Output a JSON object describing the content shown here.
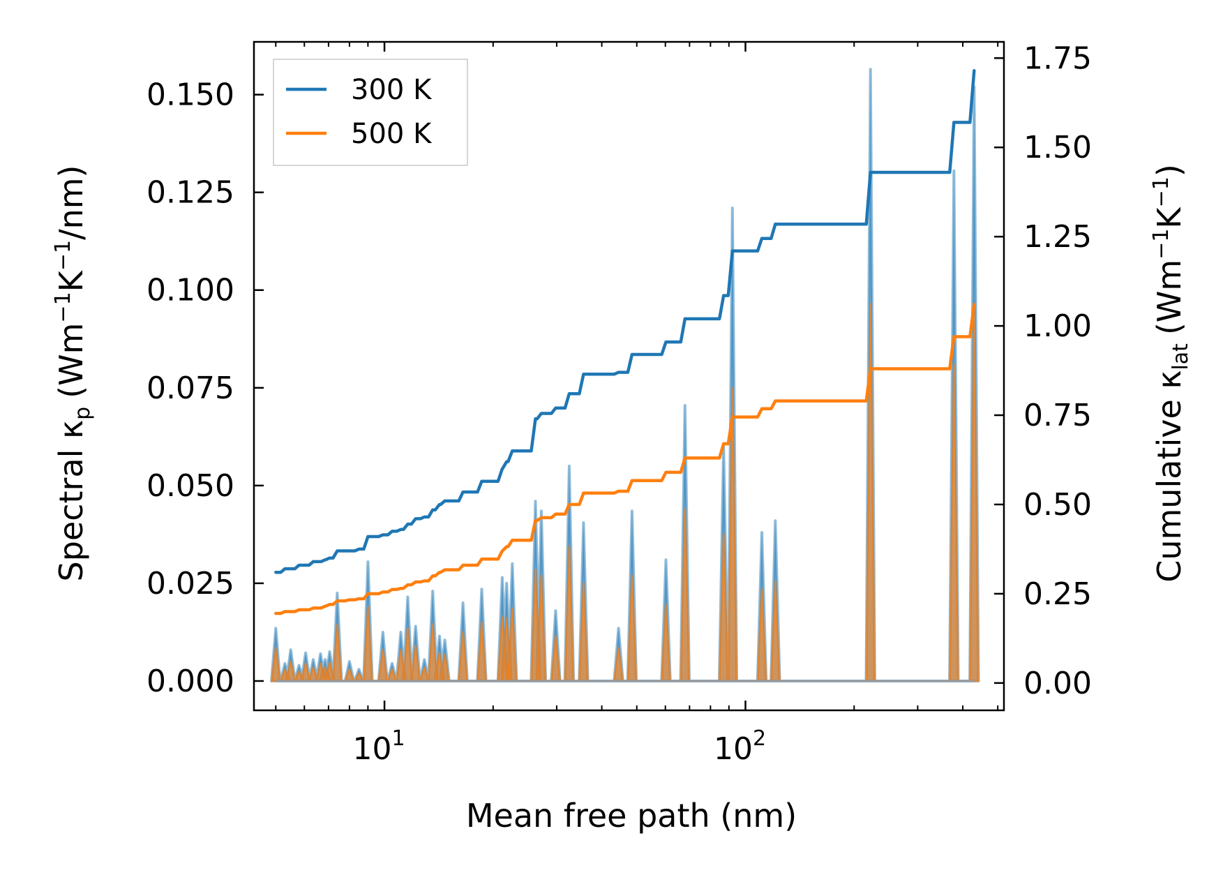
{
  "chart_data": {
    "type": "line",
    "xscale": "log",
    "xlim": [
      4.35,
      520
    ],
    "ylim_left": [
      -0.0075,
      0.1635
    ],
    "ylim_right": [
      -0.0765,
      1.7955
    ],
    "xlabel": "Mean free path (nm)",
    "ylabel_left": {
      "prefix": "Spectral κ",
      "sub": "p",
      "units": "(Wm",
      "sup1": "−1",
      "k": "K",
      "sup2": "−1",
      "tail": "/nm)"
    },
    "ylabel_right": {
      "prefix": "Cumulative κ",
      "sub": "lat",
      "units": "(Wm",
      "sup1": "−1",
      "k": "K",
      "sup2": "−1",
      "tail": ")"
    },
    "x_ticks": [
      {
        "value": 10,
        "base": "10",
        "exp": "1"
      },
      {
        "value": 100,
        "base": "10",
        "exp": "2"
      }
    ],
    "y_ticks_left": [
      {
        "value": 0.0,
        "label": "0.000"
      },
      {
        "value": 0.025,
        "label": "0.025"
      },
      {
        "value": 0.05,
        "label": "0.050"
      },
      {
        "value": 0.075,
        "label": "0.075"
      },
      {
        "value": 0.1,
        "label": "0.100"
      },
      {
        "value": 0.125,
        "label": "0.125"
      },
      {
        "value": 0.15,
        "label": "0.150"
      }
    ],
    "y_ticks_right": [
      {
        "value": 0.0,
        "label": "0.00"
      },
      {
        "value": 0.25,
        "label": "0.25"
      },
      {
        "value": 0.5,
        "label": "0.50"
      },
      {
        "value": 0.75,
        "label": "0.75"
      },
      {
        "value": 1.0,
        "label": "1.00"
      },
      {
        "value": 1.25,
        "label": "1.25"
      },
      {
        "value": 1.5,
        "label": "1.50"
      },
      {
        "value": 1.75,
        "label": "1.75"
      }
    ],
    "legend": {
      "position": "top-left",
      "entries": [
        {
          "name": "300 K",
          "color": "#1f77b4"
        },
        {
          "name": "500 K",
          "color": "#ff7f0e"
        }
      ]
    },
    "peaks": [
      {
        "x": 5.0,
        "s300": 0.0135,
        "s500": 0.0085
      },
      {
        "x": 5.3,
        "s300": 0.0045,
        "s500": 0.003
      },
      {
        "x": 5.5,
        "s300": 0.008,
        "s500": 0.005
      },
      {
        "x": 5.8,
        "s300": 0.004,
        "s500": 0.0025
      },
      {
        "x": 6.05,
        "s300": 0.0072,
        "s500": 0.0045
      },
      {
        "x": 6.35,
        "s300": 0.0055,
        "s500": 0.0035
      },
      {
        "x": 6.65,
        "s300": 0.007,
        "s500": 0.0045
      },
      {
        "x": 6.85,
        "s300": 0.0055,
        "s500": 0.0035
      },
      {
        "x": 7.05,
        "s300": 0.0075,
        "s500": 0.0048
      },
      {
        "x": 7.4,
        "s300": 0.0225,
        "s500": 0.0145
      },
      {
        "x": 8.0,
        "s300": 0.005,
        "s500": 0.003
      },
      {
        "x": 8.5,
        "s300": 0.003,
        "s500": 0.002
      },
      {
        "x": 9.0,
        "s300": 0.0305,
        "s500": 0.019
      },
      {
        "x": 9.9,
        "s300": 0.0125,
        "s500": 0.008
      },
      {
        "x": 10.5,
        "s300": 0.0045,
        "s500": 0.003
      },
      {
        "x": 11.1,
        "s300": 0.0125,
        "s500": 0.008
      },
      {
        "x": 11.6,
        "s300": 0.0215,
        "s500": 0.0135
      },
      {
        "x": 12.2,
        "s300": 0.014,
        "s500": 0.009
      },
      {
        "x": 12.9,
        "s300": 0.0055,
        "s500": 0.0035
      },
      {
        "x": 13.6,
        "s300": 0.023,
        "s500": 0.0145
      },
      {
        "x": 14.2,
        "s300": 0.0115,
        "s500": 0.0072
      },
      {
        "x": 14.7,
        "s300": 0.0105,
        "s500": 0.0068
      },
      {
        "x": 16.5,
        "s300": 0.02,
        "s500": 0.0125
      },
      {
        "x": 18.6,
        "s300": 0.0235,
        "s500": 0.015
      },
      {
        "x": 21.2,
        "s300": 0.0265,
        "s500": 0.0165
      },
      {
        "x": 21.8,
        "s300": 0.025,
        "s500": 0.016
      },
      {
        "x": 22.6,
        "s300": 0.03,
        "s500": 0.0185
      },
      {
        "x": 26.2,
        "s300": 0.046,
        "s500": 0.0285
      },
      {
        "x": 27.2,
        "s300": 0.0435,
        "s500": 0.027
      },
      {
        "x": 29.8,
        "s300": 0.018,
        "s500": 0.0115
      },
      {
        "x": 32.5,
        "s300": 0.055,
        "s500": 0.0345
      },
      {
        "x": 35.6,
        "s300": 0.0405,
        "s500": 0.025
      },
      {
        "x": 44.5,
        "s300": 0.0135,
        "s500": 0.0085
      },
      {
        "x": 48.5,
        "s300": 0.0435,
        "s500": 0.027
      },
      {
        "x": 60.2,
        "s300": 0.031,
        "s500": 0.0195
      },
      {
        "x": 68.0,
        "s300": 0.0705,
        "s500": 0.044
      },
      {
        "x": 87.0,
        "s300": 0.06,
        "s500": 0.0375
      },
      {
        "x": 92.0,
        "s300": 0.121,
        "s500": 0.075
      },
      {
        "x": 111.0,
        "s300": 0.038,
        "s500": 0.0235
      },
      {
        "x": 121.0,
        "s300": 0.041,
        "s500": 0.0255
      },
      {
        "x": 222.0,
        "s300": 0.1565,
        "s500": 0.0965
      },
      {
        "x": 378.0,
        "s300": 0.1305,
        "s500": 0.081
      },
      {
        "x": 430.0,
        "s300": 0.152,
        "s500": 0.094
      }
    ],
    "series": [
      {
        "name": "300 K",
        "axis": "right",
        "color": "#1f77b4",
        "x": [
          5.0,
          5.3,
          5.5,
          5.8,
          6.05,
          6.35,
          6.65,
          6.85,
          7.05,
          7.4,
          8.0,
          8.5,
          9.0,
          9.9,
          10.5,
          11.1,
          11.6,
          12.2,
          12.9,
          13.6,
          14.2,
          14.7,
          16.5,
          18.6,
          21.2,
          21.8,
          22.6,
          26.2,
          27.2,
          29.8,
          32.5,
          35.6,
          44.5,
          48.5,
          60.2,
          68.0,
          87.0,
          92.0,
          111.0,
          121.0,
          222.0,
          378.0,
          430.0
        ],
        "y": [
          0.31,
          0.32,
          0.32,
          0.33,
          0.33,
          0.34,
          0.34,
          0.345,
          0.35,
          0.37,
          0.37,
          0.375,
          0.41,
          0.415,
          0.425,
          0.43,
          0.445,
          0.46,
          0.465,
          0.485,
          0.5,
          0.51,
          0.535,
          0.565,
          0.6,
          0.62,
          0.65,
          0.74,
          0.755,
          0.77,
          0.81,
          0.865,
          0.87,
          0.92,
          0.955,
          1.02,
          1.085,
          1.21,
          1.245,
          1.285,
          1.43,
          1.57,
          1.715
        ]
      },
      {
        "name": "500 K",
        "axis": "right",
        "color": "#ff7f0e",
        "x": [
          5.0,
          5.3,
          5.5,
          5.8,
          6.05,
          6.35,
          6.65,
          6.85,
          7.05,
          7.4,
          8.0,
          8.5,
          9.0,
          9.9,
          10.5,
          11.1,
          11.6,
          12.2,
          12.9,
          13.6,
          14.2,
          14.7,
          16.5,
          18.6,
          21.2,
          21.8,
          22.6,
          26.2,
          27.2,
          29.8,
          32.5,
          35.6,
          44.5,
          48.5,
          60.2,
          68.0,
          87.0,
          92.0,
          111.0,
          121.0,
          222.0,
          378.0,
          430.0
        ],
        "y": [
          0.195,
          0.2,
          0.2,
          0.205,
          0.205,
          0.21,
          0.21,
          0.215,
          0.22,
          0.23,
          0.233,
          0.236,
          0.25,
          0.255,
          0.262,
          0.265,
          0.275,
          0.283,
          0.286,
          0.3,
          0.31,
          0.317,
          0.33,
          0.347,
          0.37,
          0.382,
          0.4,
          0.455,
          0.463,
          0.473,
          0.5,
          0.532,
          0.537,
          0.567,
          0.59,
          0.63,
          0.67,
          0.745,
          0.768,
          0.79,
          0.88,
          0.97,
          1.06
        ]
      }
    ]
  }
}
